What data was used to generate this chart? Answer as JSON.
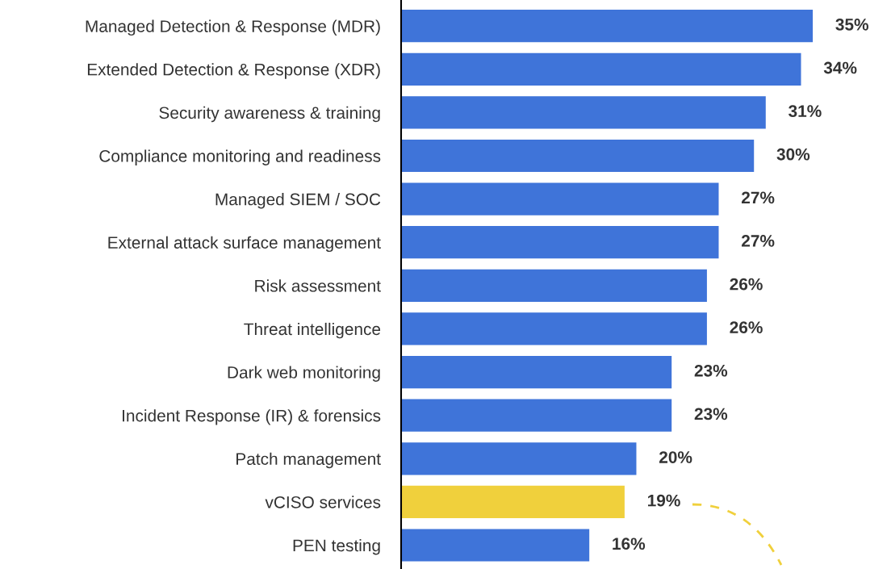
{
  "chart_data": {
    "type": "bar",
    "orientation": "horizontal",
    "categories": [
      "Managed Detection & Response (MDR)",
      "Extended Detection & Response (XDR)",
      "Security awareness & training",
      "Compliance monitoring and readiness",
      "Managed SIEM / SOC",
      "External attack surface management",
      "Risk assessment",
      "Threat intelligence",
      "Dark web monitoring",
      "Incident Response (IR) & forensics",
      "Patch management",
      "vCISO services",
      "PEN testing"
    ],
    "values": [
      35,
      34,
      31,
      30,
      27,
      27,
      26,
      26,
      23,
      23,
      20,
      19,
      16
    ],
    "value_labels": [
      "35%",
      "34%",
      "31%",
      "30%",
      "27%",
      "27%",
      "26%",
      "26%",
      "23%",
      "23%",
      "20%",
      "19%",
      "16%"
    ],
    "colors": [
      "#3f74d9",
      "#3f74d9",
      "#3f74d9",
      "#3f74d9",
      "#3f74d9",
      "#3f74d9",
      "#3f74d9",
      "#3f74d9",
      "#3f74d9",
      "#3f74d9",
      "#3f74d9",
      "#f0d03c",
      "#3f74d9"
    ],
    "grid": false,
    "legend": false
  }
}
